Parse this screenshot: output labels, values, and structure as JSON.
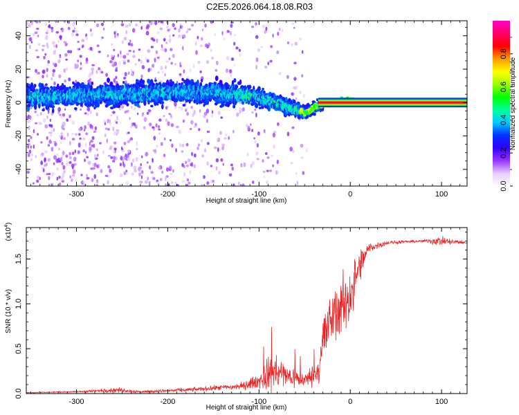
{
  "figure": {
    "title": "C2E5.2026.064.18.08.R03"
  },
  "chart_data": [
    {
      "type": "heatmap",
      "name": "spectrogram",
      "xlabel": "Height of straight line (km)",
      "ylabel": "Frequency (Hz)",
      "xlim": [
        -355,
        128
      ],
      "ylim": [
        -50,
        49
      ],
      "xticks": [
        -300,
        -200,
        -100,
        0,
        100
      ],
      "xtick_labels": [
        "-300",
        "-200",
        "-100",
        "0",
        "100"
      ],
      "yticks": [
        -40,
        -20,
        0,
        20,
        40
      ],
      "ytick_labels": [
        "-40",
        "-20",
        "0",
        "20",
        "40"
      ],
      "center_track": [
        {
          "h": -350,
          "f": 3
        },
        {
          "h": -300,
          "f": 4
        },
        {
          "h": -250,
          "f": 5
        },
        {
          "h": -200,
          "f": 6
        },
        {
          "h": -150,
          "f": 6
        },
        {
          "h": -120,
          "f": 5
        },
        {
          "h": -100,
          "f": 3
        },
        {
          "h": -80,
          "f": 0
        },
        {
          "h": -60,
          "f": -4
        },
        {
          "h": -50,
          "f": -6
        },
        {
          "h": -45,
          "f": -5
        },
        {
          "h": -40,
          "f": -3
        },
        {
          "h": -30,
          "f": -1
        },
        {
          "h": -20,
          "f": 0
        },
        {
          "h": -10,
          "f": 1
        },
        {
          "h": 0,
          "f": 1
        },
        {
          "h": 128,
          "f": 0
        }
      ],
      "colorbar": {
        "label": "Normalized spectral amplitude",
        "range": [
          0,
          1
        ],
        "ticks": [
          0.0,
          0.2,
          0.4,
          0.6,
          0.8
        ],
        "tick_labels": [
          "0.0",
          "0.2",
          "0.4",
          "0.6",
          "0.8"
        ],
        "colors": [
          "#ffffff",
          "#e6ccff",
          "#9933ff",
          "#3300ff",
          "#0033ff",
          "#00ccff",
          "#00ff99",
          "#00ff00",
          "#99ff00",
          "#ffff00",
          "#ff9900",
          "#ff0000",
          "#ff0066",
          "#ff00cc"
        ]
      }
    },
    {
      "type": "line",
      "name": "snr",
      "xlabel": "Height of straight line (km)",
      "ylabel": "SNR (10 * v/v)",
      "scale_label": "(x10",
      "scale_exponent": "4",
      "scale_close": ")",
      "color": "#ee2222",
      "xlim": [
        -355,
        128
      ],
      "ylim": [
        0,
        1.85
      ],
      "xticks": [
        -300,
        -200,
        -100,
        0,
        100
      ],
      "xtick_labels": [
        "-300",
        "-200",
        "-100",
        "0",
        "100"
      ],
      "yticks": [
        0.0,
        0.5,
        1.0,
        1.5
      ],
      "ytick_labels": [
        "0.0",
        "0.5",
        "1.0",
        "1.5"
      ],
      "envelope": [
        {
          "h": -355,
          "mean": 0.01,
          "spread": 0.01
        },
        {
          "h": -300,
          "mean": 0.02,
          "spread": 0.01
        },
        {
          "h": -255,
          "mean": 0.04,
          "spread": 0.04
        },
        {
          "h": -230,
          "mean": 0.02,
          "spread": 0.02
        },
        {
          "h": -180,
          "mean": 0.04,
          "spread": 0.03
        },
        {
          "h": -150,
          "mean": 0.06,
          "spread": 0.04
        },
        {
          "h": -120,
          "mean": 0.08,
          "spread": 0.06
        },
        {
          "h": -100,
          "mean": 0.14,
          "spread": 0.12
        },
        {
          "h": -85,
          "mean": 0.25,
          "spread": 0.35
        },
        {
          "h": -70,
          "mean": 0.2,
          "spread": 0.2
        },
        {
          "h": -50,
          "mean": 0.15,
          "spread": 0.12
        },
        {
          "h": -35,
          "mean": 0.25,
          "spread": 0.2
        },
        {
          "h": -30,
          "mean": 0.6,
          "spread": 0.5
        },
        {
          "h": -20,
          "mean": 0.85,
          "spread": 0.45
        },
        {
          "h": -10,
          "mean": 0.95,
          "spread": 0.5
        },
        {
          "h": 0,
          "mean": 1.1,
          "spread": 0.5
        },
        {
          "h": 10,
          "mean": 1.4,
          "spread": 0.3
        },
        {
          "h": 20,
          "mean": 1.62,
          "spread": 0.08
        },
        {
          "h": 40,
          "mean": 1.68,
          "spread": 0.03
        },
        {
          "h": 80,
          "mean": 1.7,
          "spread": 0.02
        },
        {
          "h": 95,
          "mean": 1.7,
          "spread": 0.08
        },
        {
          "h": 128,
          "mean": 1.68,
          "spread": 0.02
        }
      ]
    }
  ]
}
